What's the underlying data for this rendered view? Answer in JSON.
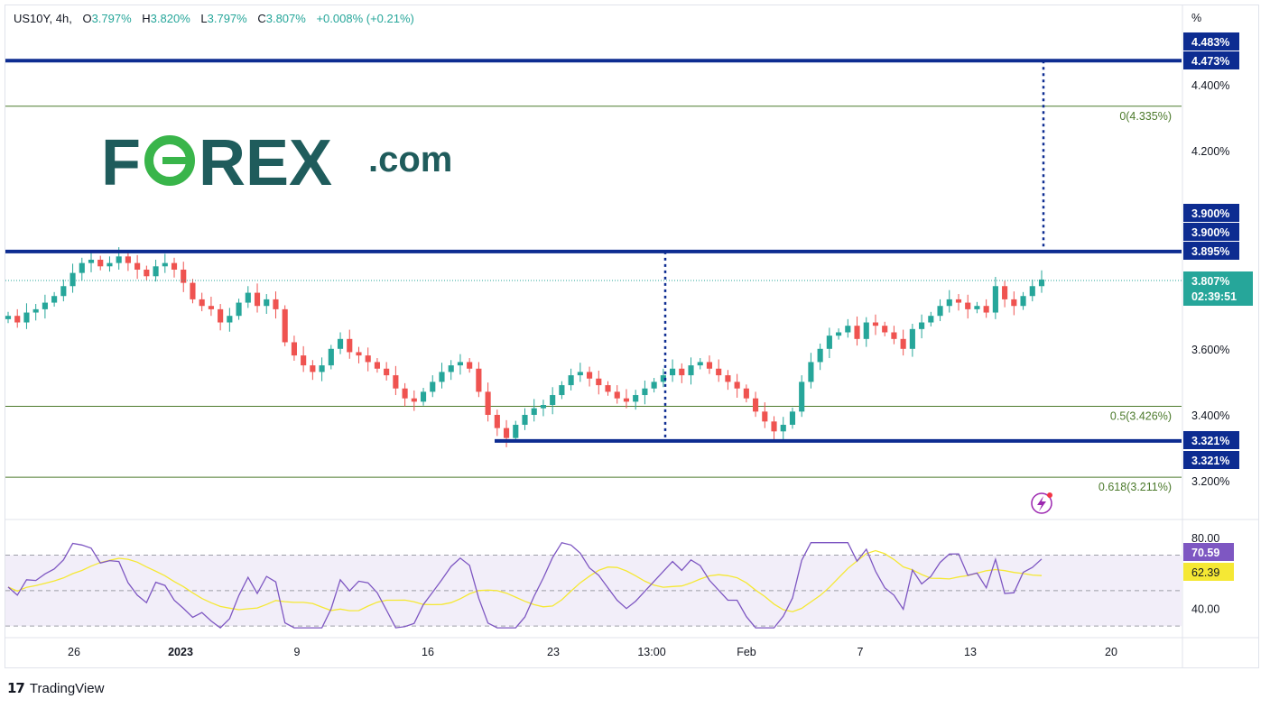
{
  "header": {
    "symbol": "US10Y, 4h,",
    "open_label": "O",
    "open": "3.797%",
    "high_label": "H",
    "high": "3.820%",
    "low_label": "L",
    "low": "3.797%",
    "close_label": "C",
    "close": "3.807%",
    "change": "+0.008% (+0.21%)"
  },
  "brand": {
    "logo_text_1": "F",
    "logo_text_2": "REX",
    "logo_text_3": ".com",
    "color_primary": "#1f5c5c",
    "color_accent": "#39b54a"
  },
  "footer": {
    "brand": "TradingView",
    "icon": "tradingview-logo-icon"
  },
  "price_axis": {
    "unit": "%",
    "ticks": [
      "4.400%",
      "4.200%",
      "3.600%",
      "3.400%",
      "3.200%"
    ],
    "tags": [
      {
        "label": "4.483%",
        "color": "#0d2c91"
      },
      {
        "label": "4.473%",
        "color": "#0d2c91"
      },
      {
        "label": "3.900%",
        "color": "#0d2c91"
      },
      {
        "label": "3.900%",
        "color": "#0d2c91"
      },
      {
        "label": "3.895%",
        "color": "#0d2c91"
      },
      {
        "label": "3.321%",
        "color": "#0d2c91"
      },
      {
        "label": "3.321%",
        "color": "#0d2c91"
      }
    ],
    "last_price": {
      "label": "3.807%",
      "countdown": "02:39:51",
      "color": "#26a69a"
    }
  },
  "rsi_axis": {
    "ticks": [
      "80.00",
      "40.00"
    ],
    "rsi_value": "70.59",
    "ma_value": "62.39",
    "rsi_color": "#7e57c2",
    "ma_color": "#f5e834"
  },
  "time_axis": {
    "labels": [
      "26",
      "2023",
      "9",
      "16",
      "23",
      "13:00",
      "Feb",
      "7",
      "13",
      "20"
    ]
  },
  "chart_data": {
    "type": "candlestick",
    "symbol": "US10Y",
    "interval": "4h",
    "ylim": [
      3.1,
      4.53
    ],
    "horizontal_levels": [
      {
        "name": "resistance",
        "value": 4.473,
        "color": "#0d2c91"
      },
      {
        "name": "resistance",
        "value": 3.895,
        "color": "#0d2c91"
      },
      {
        "name": "support",
        "value": 3.321,
        "color": "#0d2c91"
      }
    ],
    "fibonacci": [
      {
        "label": "0(4.335%)",
        "ratio": 0,
        "value": 4.335
      },
      {
        "label": "0.5(3.426%)",
        "ratio": 0.5,
        "value": 3.426
      },
      {
        "label": "0.618(3.211%)",
        "ratio": 0.618,
        "value": 3.211
      }
    ],
    "closes": [
      3.7,
      3.68,
      3.71,
      3.72,
      3.74,
      3.76,
      3.79,
      3.83,
      3.86,
      3.87,
      3.85,
      3.86,
      3.88,
      3.86,
      3.84,
      3.82,
      3.85,
      3.86,
      3.84,
      3.8,
      3.75,
      3.73,
      3.72,
      3.68,
      3.7,
      3.74,
      3.77,
      3.73,
      3.75,
      3.72,
      3.62,
      3.58,
      3.55,
      3.53,
      3.55,
      3.6,
      3.63,
      3.59,
      3.58,
      3.56,
      3.54,
      3.52,
      3.48,
      3.45,
      3.44,
      3.47,
      3.5,
      3.53,
      3.55,
      3.56,
      3.54,
      3.47,
      3.4,
      3.36,
      3.33,
      3.37,
      3.4,
      3.42,
      3.43,
      3.46,
      3.49,
      3.52,
      3.53,
      3.51,
      3.49,
      3.47,
      3.45,
      3.44,
      3.46,
      3.48,
      3.5,
      3.52,
      3.54,
      3.52,
      3.55,
      3.56,
      3.54,
      3.52,
      3.5,
      3.48,
      3.45,
      3.41,
      3.38,
      3.35,
      3.37,
      3.41,
      3.5,
      3.56,
      3.6,
      3.64,
      3.65,
      3.67,
      3.63,
      3.68,
      3.67,
      3.65,
      3.63,
      3.6,
      3.66,
      3.68,
      3.7,
      3.73,
      3.75,
      3.74,
      3.72,
      3.73,
      3.71,
      3.79,
      3.75,
      3.73,
      3.76,
      3.79,
      3.81
    ],
    "rsi": {
      "overbought": 70,
      "middle": 50,
      "oversold": 30,
      "ylim": [
        25,
        85
      ]
    }
  }
}
